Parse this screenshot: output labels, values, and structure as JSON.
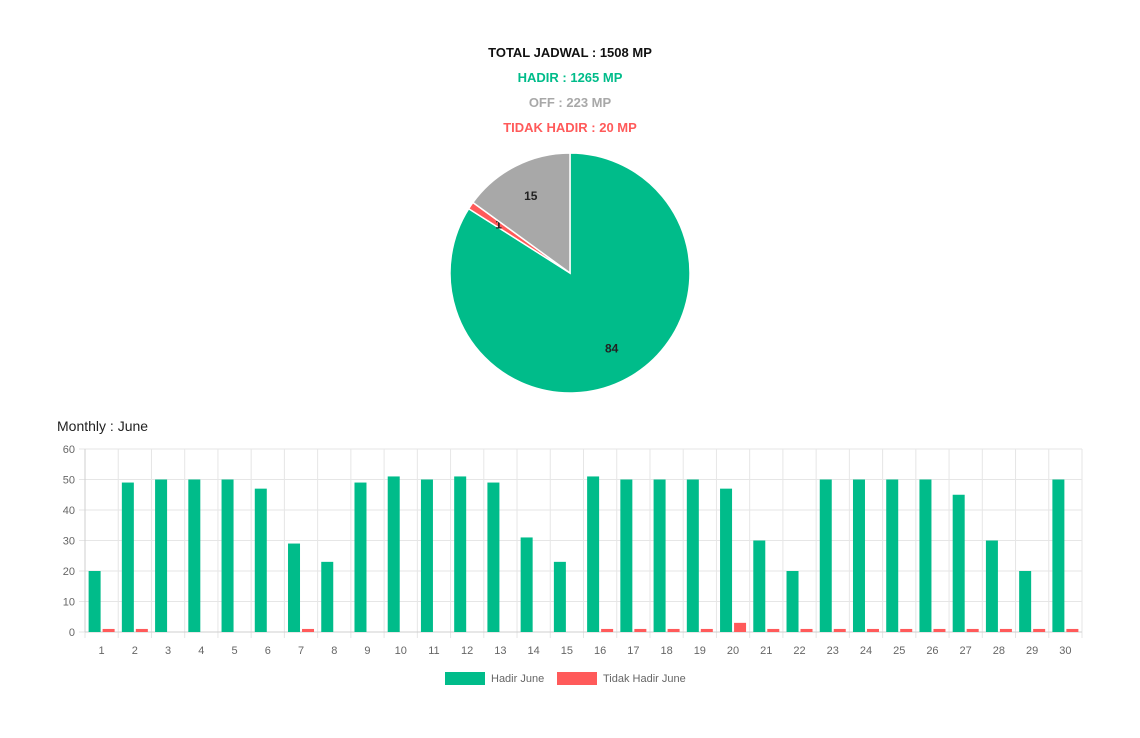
{
  "summary": {
    "total": "TOTAL JADWAL : 1508 MP",
    "hadir": "HADIR : 1265 MP",
    "off": "OFF : 223 MP",
    "tidak_hadir": "TIDAK HADIR : 20 MP"
  },
  "colors": {
    "hadir": "#00bc8a",
    "off": "#a8a8a8",
    "tidak_hadir": "#ff5a5a"
  },
  "chart_data": [
    {
      "type": "pie",
      "slices": [
        {
          "label": "84",
          "value": 84,
          "color_key": "hadir"
        },
        {
          "label": "1",
          "value": 1,
          "color_key": "tidak_hadir"
        },
        {
          "label": "15",
          "value": 15,
          "color_key": "off"
        }
      ]
    },
    {
      "type": "bar",
      "title": "Monthly : June",
      "categories": [
        "1",
        "2",
        "3",
        "4",
        "5",
        "6",
        "7",
        "8",
        "9",
        "10",
        "11",
        "12",
        "13",
        "14",
        "15",
        "16",
        "17",
        "18",
        "19",
        "20",
        "21",
        "22",
        "23",
        "24",
        "25",
        "26",
        "27",
        "28",
        "29",
        "30"
      ],
      "series": [
        {
          "name": "Hadir June",
          "color_key": "hadir",
          "values": [
            20,
            49,
            50,
            50,
            50,
            47,
            29,
            23,
            49,
            51,
            50,
            51,
            49,
            31,
            23,
            51,
            50,
            50,
            50,
            47,
            30,
            20,
            50,
            50,
            50,
            50,
            45,
            30,
            20,
            50
          ]
        },
        {
          "name": "Tidak Hadir June",
          "color_key": "tidak_hadir",
          "values": [
            1,
            1,
            0,
            0,
            0,
            0,
            1,
            0,
            0,
            0,
            0,
            0,
            0,
            0,
            0,
            1,
            1,
            1,
            1,
            3,
            1,
            1,
            1,
            1,
            1,
            1,
            1,
            1,
            1,
            1
          ]
        }
      ],
      "ylim": [
        0,
        60
      ],
      "yticks": [
        0,
        10,
        20,
        30,
        40,
        50,
        60
      ],
      "legend": "bottom",
      "grid": true
    }
  ]
}
